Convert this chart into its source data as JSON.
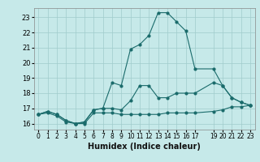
{
  "xlabel": "Humidex (Indice chaleur)",
  "background_color": "#c6e9e9",
  "grid_color": "#a0cccc",
  "line_color": "#1a6b6b",
  "xlim": [
    -0.5,
    23.5
  ],
  "ylim": [
    15.6,
    23.6
  ],
  "xticks": [
    0,
    1,
    2,
    3,
    4,
    5,
    6,
    7,
    8,
    9,
    10,
    11,
    12,
    13,
    14,
    15,
    16,
    17,
    19,
    20,
    21,
    22,
    23
  ],
  "yticks": [
    16,
    17,
    18,
    19,
    20,
    21,
    22,
    23
  ],
  "line1_x": [
    0,
    1,
    2,
    3,
    4,
    5,
    6,
    7,
    8,
    9,
    10,
    11,
    12,
    13,
    14,
    15,
    16,
    17,
    19,
    20,
    21,
    22,
    23
  ],
  "line1_y": [
    16.6,
    16.7,
    16.5,
    16.1,
    16.0,
    16.0,
    16.7,
    16.7,
    16.7,
    16.6,
    16.6,
    16.6,
    16.6,
    16.6,
    16.7,
    16.7,
    16.7,
    16.7,
    16.8,
    16.9,
    17.1,
    17.1,
    17.2
  ],
  "line2_x": [
    0,
    1,
    2,
    3,
    4,
    5,
    6,
    7,
    8,
    9,
    10,
    11,
    12,
    13,
    14,
    15,
    16,
    17,
    19,
    20,
    21,
    22,
    23
  ],
  "line2_y": [
    16.6,
    16.8,
    16.6,
    16.2,
    16.0,
    16.1,
    16.9,
    17.0,
    17.0,
    16.9,
    17.5,
    18.5,
    18.5,
    17.7,
    17.7,
    18.0,
    18.0,
    18.0,
    18.7,
    18.5,
    17.7,
    17.4,
    17.2
  ],
  "line3_x": [
    0,
    1,
    2,
    3,
    4,
    5,
    6,
    7,
    8,
    9,
    10,
    11,
    12,
    13,
    14,
    15,
    16,
    17,
    19,
    20,
    21,
    22,
    23
  ],
  "line3_y": [
    16.6,
    16.8,
    16.6,
    16.2,
    16.0,
    16.1,
    16.9,
    17.0,
    18.7,
    18.5,
    20.9,
    21.2,
    21.8,
    23.3,
    23.3,
    22.7,
    22.1,
    19.6,
    19.6,
    18.5,
    17.7,
    17.4,
    17.2
  ],
  "tick_labelsize": 5.5,
  "xlabel_fontsize": 7
}
